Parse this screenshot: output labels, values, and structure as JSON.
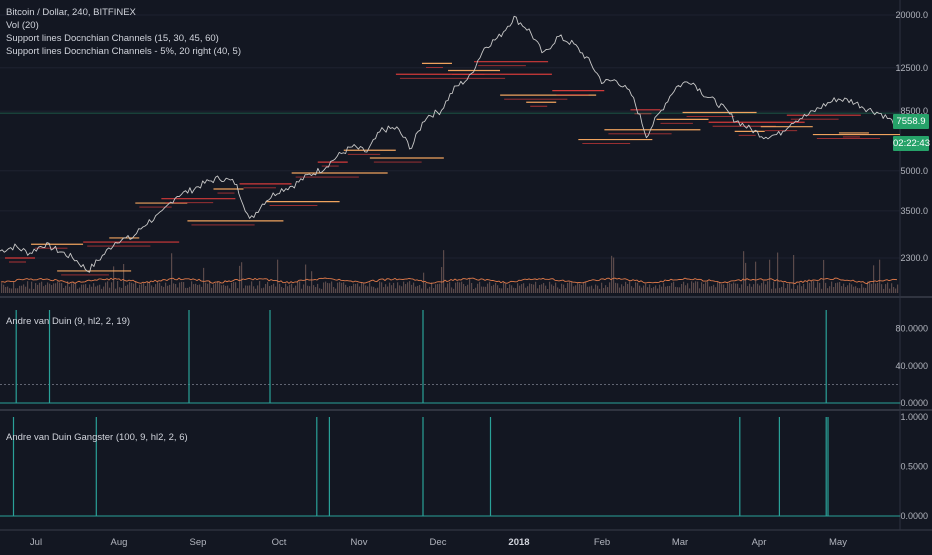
{
  "legends": {
    "main": [
      "Bitcoin / Dollar, 240, BITFINEX",
      "Vol (20)",
      "Support lines Docnchian Channels (15, 30, 45, 60)",
      "Support lines Docnchian Channels - 5%, 20 right (40, 5)"
    ],
    "pane2": "Andre van Duin (9, hl2, 2, 19)",
    "pane3": "Andre van Duin Gangster (100, 9, hl2, 2, 6)"
  },
  "price_badges": {
    "last_price": "7558.9",
    "countdown": "02:22:43"
  },
  "colors": {
    "background": "#131722",
    "price_line": "#c8c8c8",
    "support_orange": "#f0a35e",
    "support_red": "#d33a3a",
    "volume": "#5a4a4a",
    "volume_ma": "#e07a4a",
    "teal": "#2aa198",
    "badge": "#26a269"
  },
  "chart_data": [
    {
      "type": "line",
      "title": "Bitcoin / Dollar, 240, BITFINEX",
      "y_scale": "log",
      "y_ticks": [
        "20000.0",
        "12500.0",
        "8500.0",
        "5000.0",
        "3500.0",
        "2300.0"
      ],
      "y_tick_values": [
        20000,
        12500,
        8500,
        5000,
        3500,
        2300
      ],
      "x_ticks": [
        "Jul",
        "Aug",
        "Sep",
        "Oct",
        "Nov",
        "Dec",
        "2018",
        "Feb",
        "Mar",
        "Apr",
        "May"
      ],
      "series": [
        {
          "values": [
            2450,
            2550,
            2400,
            2600,
            2450,
            2300,
            2050,
            2350,
            2700,
            2750,
            3150,
            3400,
            4000,
            4200,
            4500,
            4700,
            4500,
            3200,
            3800,
            4200,
            4400,
            4800,
            5100,
            5700,
            6200,
            5900,
            7200,
            7300,
            6100,
            8100,
            8500,
            10500,
            11500,
            15000,
            16500,
            19500,
            17500,
            14000,
            16500,
            15500,
            13500,
            11000,
            11200,
            9800,
            6800,
            8500,
            10500,
            11200,
            9800,
            9000,
            7900,
            7300,
            6800,
            6900,
            7800,
            8200,
            8900,
            9500,
            9300,
            8700,
            8300,
            7560
          ]
        }
      ],
      "support_lines": [
        2300,
        2600,
        2050,
        2650,
        2750,
        3750,
        3900,
        3200,
        4250,
        4450,
        3800,
        4900,
        5400,
        6000,
        5600,
        11800,
        13000,
        12200,
        13200,
        9800,
        9200,
        10200,
        6600,
        7200,
        8600,
        7900,
        8400,
        7700,
        7100,
        7400,
        8200,
        6900,
        7000
      ]
    },
    {
      "type": "bar",
      "title": "Andre van Duin (9, hl2, 2, 19)",
      "y_ticks": [
        "80.0000",
        "40.0000",
        "0.0000"
      ],
      "y_tick_values": [
        80,
        40,
        0
      ],
      "ylim": [
        0,
        100
      ],
      "reference_line": 20,
      "spike_x_fractions": [
        0.018,
        0.055,
        0.21,
        0.3,
        0.47,
        0.918
      ],
      "spike_values": [
        100,
        100,
        100,
        100,
        100,
        100
      ]
    },
    {
      "type": "bar",
      "title": "Andre van Duin Gangster (100, 9, hl2, 2, 6)",
      "y_ticks": [
        "1.0000",
        "0.5000",
        "0.0000"
      ],
      "y_tick_values": [
        1,
        0.5,
        0
      ],
      "ylim": [
        0,
        1
      ],
      "spike_x_fractions": [
        0.015,
        0.107,
        0.352,
        0.366,
        0.47,
        0.545,
        0.822,
        0.866,
        0.918,
        0.92
      ],
      "spike_values": [
        1,
        1,
        1,
        1,
        1,
        1,
        1,
        1,
        1,
        1
      ]
    }
  ]
}
